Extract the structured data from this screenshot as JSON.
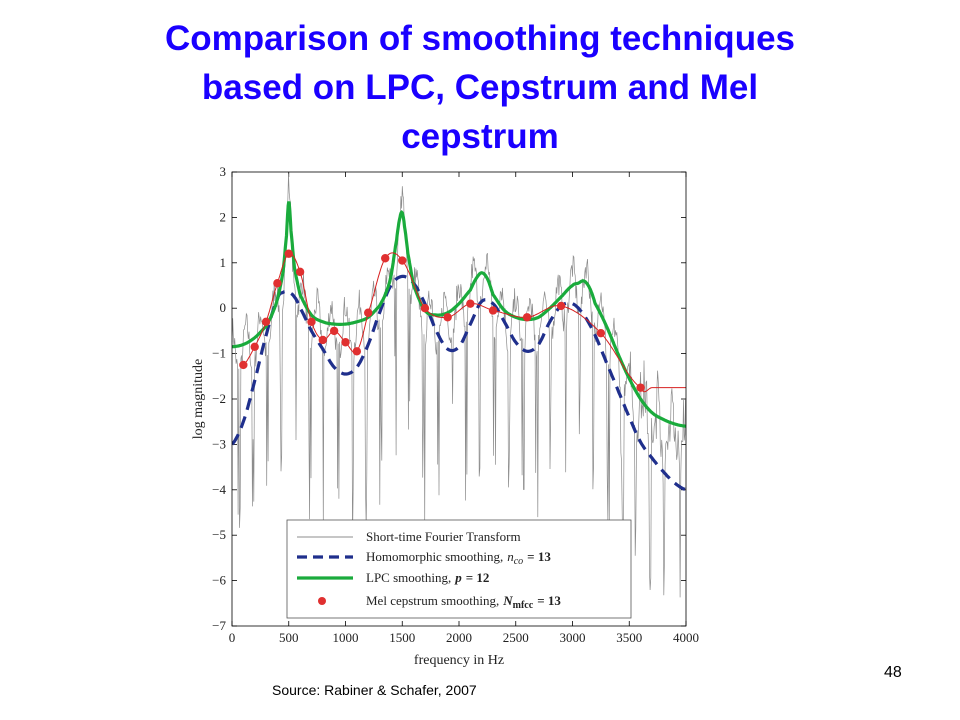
{
  "slide": {
    "title_lines": [
      "Comparison of smoothing techniques",
      "based on LPC, Cepstrum and Mel",
      "cepstrum"
    ],
    "source": "Source: Rabiner & Schafer, 2007",
    "page_number": "48"
  },
  "chart_data": {
    "type": "line",
    "title": "",
    "xlabel": "frequency in Hz",
    "ylabel": "log magnitude",
    "xlim": [
      0,
      4000
    ],
    "ylim": [
      -7,
      3
    ],
    "xticks": [
      0,
      500,
      1000,
      1500,
      2000,
      2500,
      3000,
      3500,
      4000
    ],
    "yticks": [
      3,
      2,
      1,
      0,
      -1,
      -2,
      -3,
      -4,
      -5,
      -6,
      -7
    ],
    "legend_position": "bottom",
    "legend": {
      "stft": "Short-time Fourier Transform",
      "homomorphic_prefix": "Homomorphic smoothing,",
      "homomorphic_var": "n",
      "homomorphic_sub": "co",
      "homomorphic_rhs": "= 13",
      "lpc_prefix": "LPC smoothing,",
      "lpc_var": "p",
      "lpc_rhs": "= 12",
      "mel_prefix": "Mel cepstrum smoothing,",
      "mel_var": "N",
      "mel_sub": "mfcc",
      "mel_rhs": "= 13"
    },
    "colors": {
      "stft": "#8c8c8c",
      "homomorphic": "#1f2f8c",
      "lpc": "#1aab3c",
      "mel": "#e03030",
      "mel_line": "#d82020"
    },
    "series": [
      {
        "name": "Homomorphic smoothing",
        "style": "dashed",
        "x": [
          0,
          100,
          200,
          300,
          400,
          450,
          500,
          550,
          600,
          700,
          800,
          900,
          1000,
          1100,
          1200,
          1300,
          1400,
          1500,
          1600,
          1700,
          1800,
          1900,
          2000,
          2100,
          2200,
          2300,
          2400,
          2500,
          2600,
          2700,
          2800,
          2900,
          3000,
          3100,
          3200,
          3300,
          3400,
          3500,
          3600,
          3700,
          3800,
          3900,
          4000
        ],
        "y": [
          -3.0,
          -2.5,
          -1.6,
          -0.6,
          0.2,
          0.35,
          0.35,
          0.25,
          0.0,
          -0.5,
          -0.9,
          -1.3,
          -1.45,
          -1.3,
          -0.8,
          -0.1,
          0.5,
          0.7,
          0.55,
          0.1,
          -0.5,
          -0.9,
          -0.85,
          -0.35,
          0.15,
          0.1,
          -0.3,
          -0.75,
          -0.95,
          -0.8,
          -0.3,
          0.05,
          0.1,
          -0.15,
          -0.6,
          -1.2,
          -1.8,
          -2.4,
          -2.95,
          -3.3,
          -3.6,
          -3.85,
          -4.0
        ]
      },
      {
        "name": "LPC smoothing",
        "style": "solid",
        "x": [
          0,
          100,
          200,
          300,
          350,
          400,
          450,
          480,
          500,
          520,
          550,
          600,
          700,
          800,
          900,
          1000,
          1100,
          1200,
          1300,
          1350,
          1400,
          1450,
          1480,
          1500,
          1520,
          1550,
          1600,
          1700,
          1800,
          1900,
          2000,
          2100,
          2150,
          2200,
          2250,
          2300,
          2400,
          2500,
          2600,
          2700,
          2800,
          2900,
          3000,
          3050,
          3100,
          3150,
          3200,
          3300,
          3400,
          3500,
          3600,
          3700,
          3800,
          3900,
          4000
        ],
        "y": [
          -0.85,
          -0.8,
          -0.65,
          -0.4,
          -0.15,
          0.2,
          0.8,
          1.6,
          2.35,
          1.7,
          0.9,
          0.3,
          -0.15,
          -0.3,
          -0.35,
          -0.35,
          -0.3,
          -0.2,
          0.05,
          0.3,
          0.7,
          1.5,
          2.0,
          2.1,
          1.8,
          1.2,
          0.5,
          -0.05,
          -0.15,
          -0.1,
          0.1,
          0.4,
          0.65,
          0.78,
          0.65,
          0.3,
          -0.05,
          -0.2,
          -0.25,
          -0.2,
          0.0,
          0.25,
          0.5,
          0.55,
          0.6,
          0.45,
          0.1,
          -0.4,
          -1.0,
          -1.55,
          -2.0,
          -2.3,
          -2.45,
          -2.55,
          -2.6
        ]
      },
      {
        "name": "Mel cepstrum smoothing",
        "style": "markers",
        "x": [
          100,
          200,
          300,
          400,
          500,
          600,
          700,
          800,
          900,
          1000,
          1100,
          1200,
          1350,
          1500,
          1700,
          1900,
          2100,
          2300,
          2600,
          2900,
          3250,
          3600,
          3700,
          3800,
          3900,
          4000
        ],
        "y": [
          -1.25,
          -0.85,
          -0.3,
          0.55,
          1.2,
          0.8,
          -0.3,
          -0.7,
          -0.5,
          -0.75,
          -0.95,
          -0.1,
          1.1,
          1.05,
          0.0,
          -0.2,
          0.1,
          -0.05,
          -0.2,
          0.05,
          -0.55,
          -1.75,
          -1.75,
          -1.75,
          -1.75,
          -1.75
        ],
        "marker_count": 22
      }
    ]
  }
}
